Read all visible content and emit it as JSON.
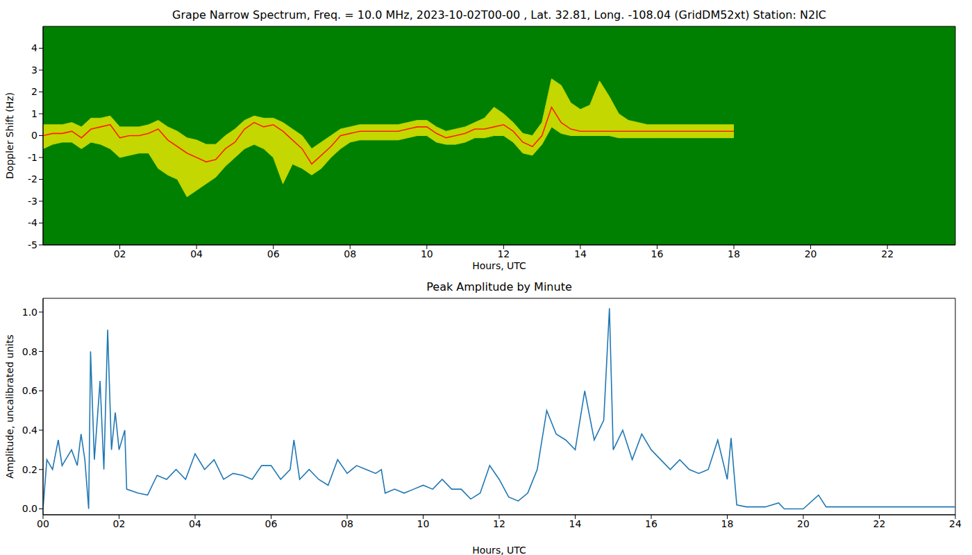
{
  "chart_data": [
    {
      "type": "line",
      "title": "Grape Narrow Spectrum, Freq. = 10.0 MHz, 2023-10-02T00-00 , Lat.  32.81, Long. -108.04 (GridDM52xt) Station: N2IC",
      "x_label": "Hours, UTC",
      "y_label": "Doppler Shift (Hz)",
      "x": [
        0,
        0.25,
        0.5,
        0.75,
        1.0,
        1.25,
        1.5,
        1.75,
        2.0,
        2.25,
        2.5,
        2.75,
        3.0,
        3.25,
        3.5,
        3.75,
        4.0,
        4.25,
        4.5,
        4.75,
        5.0,
        5.25,
        5.5,
        5.75,
        6.0,
        6.25,
        6.5,
        6.75,
        7.0,
        7.25,
        7.5,
        7.75,
        8.0,
        8.25,
        8.5,
        8.75,
        9.0,
        9.25,
        9.5,
        9.75,
        10.0,
        10.25,
        10.5,
        10.75,
        11.0,
        11.25,
        11.5,
        11.75,
        12.0,
        12.25,
        12.5,
        12.75,
        13.0,
        13.25,
        13.5,
        13.75,
        14.0,
        14.25,
        14.5,
        14.75,
        15.0,
        15.25,
        15.5,
        15.75,
        16.0,
        16.25,
        16.5,
        16.75,
        17.0,
        17.25,
        17.5,
        17.75,
        18.0
      ],
      "values": [
        0.0,
        0.1,
        0.1,
        0.2,
        -0.1,
        0.3,
        0.4,
        0.5,
        -0.1,
        0.0,
        0.0,
        0.1,
        0.3,
        -0.2,
        -0.5,
        -0.8,
        -1.0,
        -1.2,
        -1.1,
        -0.6,
        -0.3,
        0.3,
        0.6,
        0.4,
        0.5,
        0.2,
        -0.2,
        -0.6,
        -1.3,
        -0.9,
        -0.5,
        0.0,
        0.1,
        0.2,
        0.2,
        0.2,
        0.2,
        0.2,
        0.3,
        0.4,
        0.4,
        0.1,
        -0.1,
        0.0,
        0.1,
        0.3,
        0.3,
        0.4,
        0.5,
        0.2,
        -0.3,
        -0.5,
        0.0,
        1.3,
        0.6,
        0.3,
        0.2,
        0.2,
        0.2,
        0.2,
        0.2,
        0.2,
        0.2,
        0.2,
        0.2,
        0.2,
        0.2,
        0.2,
        0.2,
        0.2,
        0.2,
        0.2,
        0.2
      ],
      "low": [
        -0.6,
        -0.4,
        -0.3,
        -0.3,
        -0.6,
        -0.3,
        -0.4,
        -0.6,
        -1.0,
        -0.9,
        -0.8,
        -0.8,
        -1.5,
        -1.8,
        -2.0,
        -2.8,
        -2.5,
        -2.2,
        -1.9,
        -1.4,
        -1.0,
        -0.6,
        -0.4,
        -0.6,
        -1.0,
        -2.2,
        -1.3,
        -1.5,
        -1.8,
        -1.5,
        -1.0,
        -0.6,
        -0.3,
        -0.2,
        -0.2,
        -0.2,
        -0.2,
        -0.2,
        -0.1,
        0.0,
        0.0,
        -0.3,
        -0.4,
        -0.4,
        -0.3,
        -0.1,
        -0.1,
        0.0,
        0.0,
        -0.3,
        -0.8,
        -0.9,
        -0.4,
        0.4,
        0.1,
        0.0,
        0.0,
        0.0,
        0.0,
        0.0,
        -0.1,
        -0.1,
        -0.1,
        -0.1,
        -0.1,
        -0.1,
        -0.1,
        -0.1,
        -0.1,
        -0.1,
        -0.1,
        -0.1,
        -0.1
      ],
      "high": [
        0.5,
        0.5,
        0.5,
        0.6,
        0.4,
        0.8,
        0.8,
        0.9,
        0.4,
        0.4,
        0.4,
        0.5,
        0.7,
        0.4,
        0.2,
        -0.1,
        -0.2,
        -0.4,
        -0.4,
        0.0,
        0.3,
        0.7,
        0.9,
        0.8,
        0.8,
        0.6,
        0.3,
        0.0,
        -0.6,
        -0.3,
        0.0,
        0.3,
        0.4,
        0.5,
        0.5,
        0.5,
        0.5,
        0.5,
        0.6,
        0.7,
        0.7,
        0.4,
        0.2,
        0.3,
        0.4,
        0.6,
        0.8,
        1.3,
        1.0,
        0.6,
        0.1,
        0.0,
        0.6,
        2.6,
        2.3,
        1.5,
        1.2,
        1.4,
        2.5,
        1.8,
        1.0,
        0.7,
        0.6,
        0.5,
        0.5,
        0.5,
        0.5,
        0.5,
        0.5,
        0.5,
        0.5,
        0.5,
        0.5
      ],
      "color": "#ff2000",
      "xlim": [
        0,
        23.77
      ],
      "ylim": [
        -5,
        5
      ],
      "xticks": [
        {
          "value": 2,
          "label": "02"
        },
        {
          "value": 4,
          "label": "04"
        },
        {
          "value": 6,
          "label": "06"
        },
        {
          "value": 8,
          "label": "08"
        },
        {
          "value": 10,
          "label": "10"
        },
        {
          "value": 12,
          "label": "12"
        },
        {
          "value": 14,
          "label": "14"
        },
        {
          "value": 16,
          "label": "16"
        },
        {
          "value": 18,
          "label": "18"
        },
        {
          "value": 20,
          "label": "20"
        },
        {
          "value": 22,
          "label": "22"
        }
      ],
      "yticks": [
        -5,
        -4,
        -3,
        -2,
        -1,
        0,
        1,
        2,
        3,
        4
      ],
      "grid": false
    },
    {
      "type": "line",
      "title": "Peak Amplitude by Minute",
      "x_label": "Hours, UTC",
      "y_label": "Amplitude, uncalibrated units",
      "x": [
        0,
        0.1,
        0.25,
        0.4,
        0.5,
        0.75,
        0.9,
        1.0,
        1.1,
        1.2,
        1.25,
        1.35,
        1.5,
        1.6,
        1.7,
        1.8,
        1.9,
        2.0,
        2.15,
        2.2,
        2.5,
        2.75,
        3.0,
        3.25,
        3.5,
        3.75,
        4.0,
        4.25,
        4.5,
        4.75,
        5.0,
        5.25,
        5.5,
        5.75,
        6.0,
        6.25,
        6.5,
        6.6,
        6.75,
        7.0,
        7.25,
        7.5,
        7.75,
        8.0,
        8.25,
        8.5,
        8.75,
        8.9,
        9.0,
        9.25,
        9.5,
        9.75,
        10.0,
        10.25,
        10.5,
        10.75,
        11.0,
        11.25,
        11.5,
        11.75,
        12.0,
        12.25,
        12.5,
        12.75,
        13.0,
        13.25,
        13.5,
        13.75,
        14.0,
        14.25,
        14.5,
        14.75,
        14.9,
        15.0,
        15.25,
        15.5,
        15.75,
        16.0,
        16.25,
        16.5,
        16.75,
        17.0,
        17.25,
        17.5,
        17.75,
        18.0,
        18.1,
        18.25,
        18.5,
        19.0,
        19.35,
        19.5,
        20.0,
        20.4,
        20.6,
        21.0,
        22.0,
        23.0,
        24.0
      ],
      "values": [
        0.0,
        0.25,
        0.2,
        0.35,
        0.22,
        0.3,
        0.22,
        0.38,
        0.25,
        0.0,
        0.8,
        0.25,
        0.65,
        0.2,
        0.91,
        0.3,
        0.49,
        0.3,
        0.4,
        0.1,
        0.08,
        0.07,
        0.17,
        0.15,
        0.2,
        0.15,
        0.28,
        0.2,
        0.25,
        0.15,
        0.18,
        0.17,
        0.15,
        0.22,
        0.22,
        0.15,
        0.2,
        0.35,
        0.15,
        0.2,
        0.15,
        0.12,
        0.25,
        0.18,
        0.22,
        0.2,
        0.18,
        0.2,
        0.08,
        0.1,
        0.08,
        0.1,
        0.12,
        0.1,
        0.15,
        0.1,
        0.1,
        0.05,
        0.08,
        0.22,
        0.15,
        0.06,
        0.04,
        0.08,
        0.2,
        0.5,
        0.38,
        0.35,
        0.3,
        0.6,
        0.35,
        0.45,
        1.02,
        0.3,
        0.4,
        0.25,
        0.38,
        0.3,
        0.25,
        0.2,
        0.25,
        0.2,
        0.18,
        0.2,
        0.35,
        0.15,
        0.36,
        0.02,
        0.01,
        0.01,
        0.03,
        0.0,
        0.0,
        0.07,
        0.01,
        0.01,
        0.01,
        0.01,
        0.01
      ],
      "color": "#1f77b4",
      "xlim": [
        0,
        24
      ],
      "ylim": [
        -0.03,
        1.07
      ],
      "xticks": [
        {
          "value": 0,
          "label": "00"
        },
        {
          "value": 2,
          "label": "02"
        },
        {
          "value": 4,
          "label": "04"
        },
        {
          "value": 6,
          "label": "06"
        },
        {
          "value": 8,
          "label": "08"
        },
        {
          "value": 10,
          "label": "10"
        },
        {
          "value": 12,
          "label": "12"
        },
        {
          "value": 14,
          "label": "14"
        },
        {
          "value": 16,
          "label": "16"
        },
        {
          "value": 18,
          "label": "18"
        },
        {
          "value": 20,
          "label": "20"
        },
        {
          "value": 22,
          "label": "22"
        },
        {
          "value": 24,
          "label": "24"
        }
      ],
      "yticks": [
        {
          "value": 0,
          "label": "0.0"
        },
        {
          "value": 0.2,
          "label": "0.2"
        },
        {
          "value": 0.4,
          "label": "0.4"
        },
        {
          "value": 0.6,
          "label": "0.6"
        },
        {
          "value": 0.8,
          "label": "0.8"
        },
        {
          "value": 1,
          "label": "1.0"
        }
      ],
      "grid": false
    }
  ]
}
